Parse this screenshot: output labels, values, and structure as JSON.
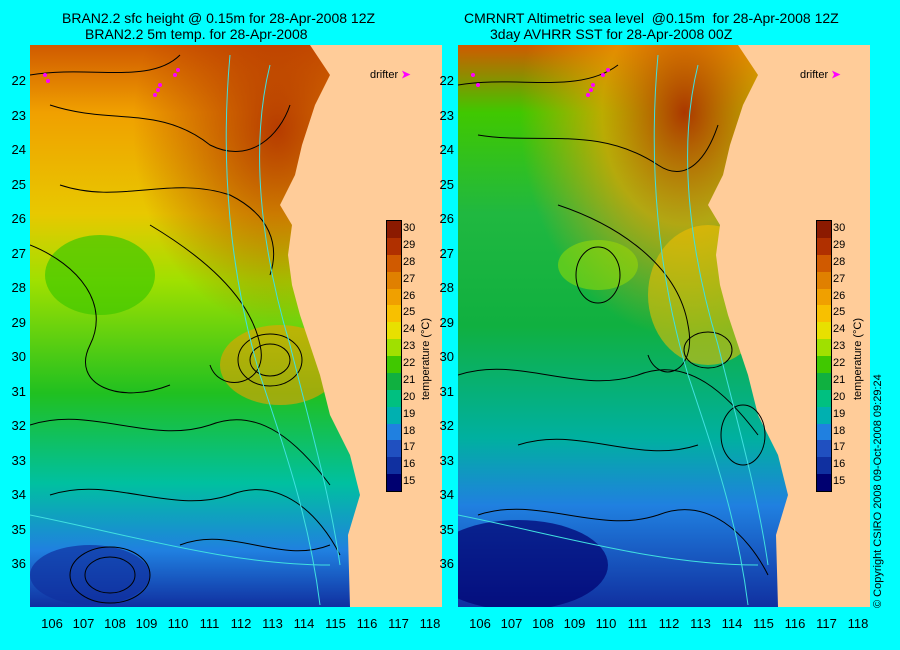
{
  "titles": {
    "left_line1": "BRAN2.2 sfc height @ 0.15m for 28-Apr-2008 12Z",
    "left_line2": "BRAN2.2 5m temp. for 28-Apr-2008",
    "right_line1": "CMRNRT Altimetric sea level  @0.15m  for 28-Apr-2008 12Z",
    "right_line2": "3day AVHRR SST for 28-Apr-2008 00Z"
  },
  "latitudes": [
    "22",
    "23",
    "24",
    "25",
    "26",
    "27",
    "28",
    "29",
    "30",
    "31",
    "32",
    "33",
    "34",
    "35",
    "36"
  ],
  "longitudes": [
    "106",
    "107",
    "108",
    "109",
    "110",
    "111",
    "112",
    "113",
    "114",
    "115",
    "116",
    "117",
    "118"
  ],
  "colorbar": {
    "ticks": [
      "30",
      "29",
      "28",
      "27",
      "26",
      "25",
      "24",
      "23",
      "22",
      "21",
      "20",
      "19",
      "18",
      "17",
      "16",
      "15"
    ],
    "title": "temperature (°C)",
    "colors": [
      "#8b1a00",
      "#b03000",
      "#d05a00",
      "#e08000",
      "#f0a000",
      "#f8c000",
      "#e8e000",
      "#a0e000",
      "#40c800",
      "#10b040",
      "#00c080",
      "#00b0b0",
      "#2080e0",
      "#2050c0",
      "#1030a0",
      "#000070"
    ]
  },
  "drifter_label": "drifter",
  "copyright": "© Copyright CSIRO 2008   09-Oct-2008 09:29:24",
  "land_color": "#ffcc99",
  "magenta": "#ff00ff"
}
